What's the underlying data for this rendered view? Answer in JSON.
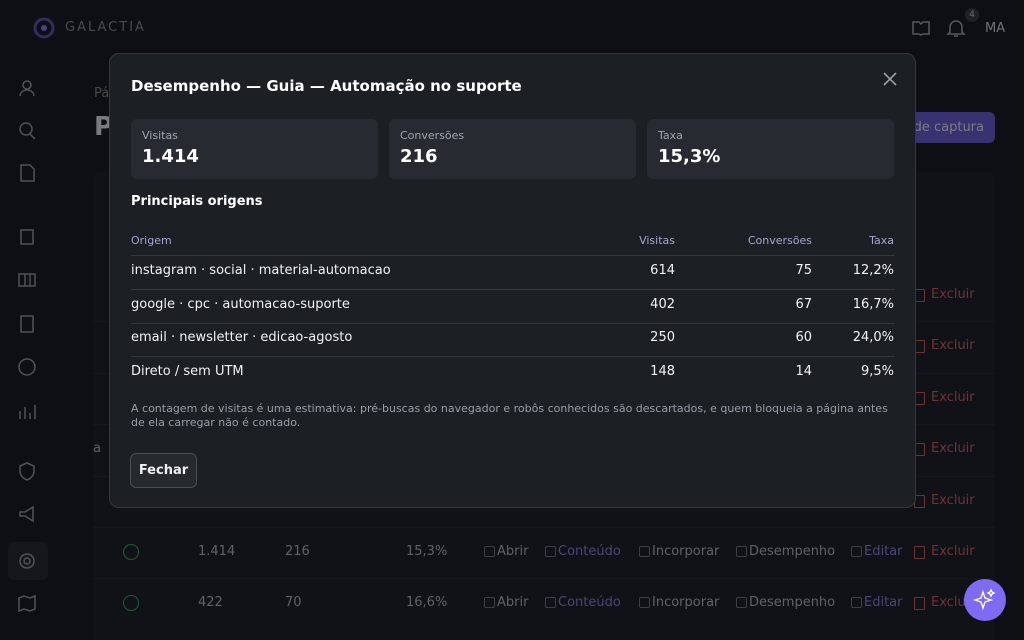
{
  "app": {
    "brand": "GALACTIA",
    "notification_count": "4",
    "user_initials": "MA"
  },
  "background": {
    "breadcrumb": "Pá",
    "page_title": "P",
    "capture_button": "de captura",
    "table": {
      "rows": [
        {
          "delete": "Excluir"
        },
        {
          "delete": "Excluir"
        },
        {
          "delete": "Excluir"
        },
        {
          "name_fragment": "a",
          "delete": "Excluir"
        },
        {
          "delete": "Excluir"
        },
        {
          "visits": "1.414",
          "conversions": "216",
          "rate": "15,3%",
          "open": "Abrir",
          "content": "Conteúdo",
          "embed": "Incorporar",
          "performance": "Desempenho",
          "edit": "Editar",
          "delete": "Excluir"
        },
        {
          "visits": "422",
          "conversions": "70",
          "rate": "16,6%",
          "open": "Abrir",
          "content": "Conteúdo",
          "embed": "Incorporar",
          "performance": "Desempenho",
          "edit": "Editar",
          "delete": "Exclu"
        }
      ]
    }
  },
  "modal": {
    "title": "Desempenho — Guia — Automação no suporte",
    "stats": [
      {
        "label": "Visitas",
        "value": "1.414"
      },
      {
        "label": "Conversões",
        "value": "216"
      },
      {
        "label": "Taxa",
        "value": "15,3%"
      }
    ],
    "section_title": "Principais origens",
    "table": {
      "headers": [
        "Origem",
        "Visitas",
        "Conversões",
        "Taxa"
      ],
      "rows": [
        [
          "instagram · social · material-automacao",
          "614",
          "75",
          "12,2%"
        ],
        [
          "google · cpc · automacao-suporte",
          "402",
          "67",
          "16,7%"
        ],
        [
          "email · newsletter · edicao-agosto",
          "250",
          "60",
          "24,0%"
        ],
        [
          "Direto / sem UTM",
          "148",
          "14",
          "9,5%"
        ]
      ]
    },
    "note": "A contagem de visitas é uma estimativa: pré-buscas do navegador e robôs conhecidos são descartados, e quem bloqueia a página antes de ela carregar não é contado.",
    "close_button": "Fechar"
  }
}
